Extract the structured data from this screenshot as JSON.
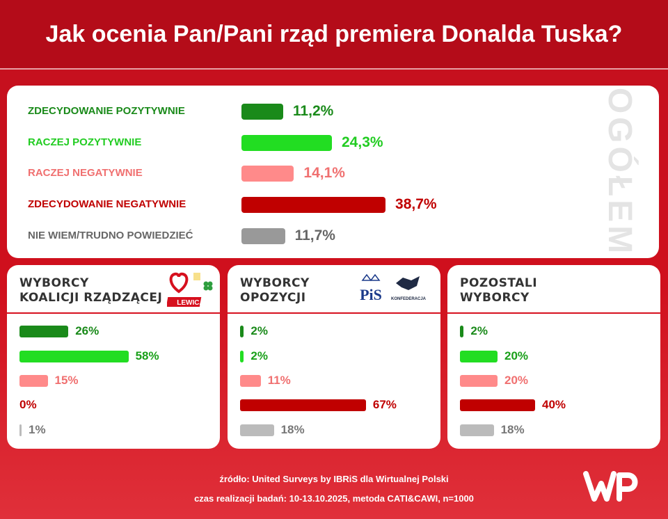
{
  "title": "Jak ocenia Pan/Pani rząd premiera Donalda Tuska?",
  "colors": {
    "title_bg": "#b40c19",
    "dark_green": "#1a8a1a",
    "light_green": "#22dd22",
    "pink": "#ff8a8a",
    "dark_red": "#c00000",
    "grey": "#999999",
    "light_grey": "#bbbbbb"
  },
  "chart_data": [
    {
      "type": "bar",
      "title": "OGÓŁEM",
      "categories": [
        "ZDECYDOWANIE POZYTYWNIE",
        "RACZEJ POZYTYWNIE",
        "RACZEJ NEGATYWNIE",
        "ZDECYDOWANIE NEGATYWNIE",
        "NIE WIEM/TRUDNO POWIEDZIEĆ"
      ],
      "values": [
        11.2,
        24.3,
        14.1,
        38.7,
        11.7
      ],
      "value_labels": [
        "11,2%",
        "24,3%",
        "14,1%",
        "38,7%",
        "11,7%"
      ],
      "orientation": "horizontal"
    },
    {
      "type": "bar",
      "title_lines": [
        "WYBORCY",
        "KOALICJI RZĄDZĄCEJ"
      ],
      "values": [
        26,
        58,
        15,
        0,
        1
      ],
      "value_labels": [
        "26%",
        "58%",
        "15%",
        "0%",
        "1%"
      ],
      "orientation": "horizontal"
    },
    {
      "type": "bar",
      "title_lines": [
        "WYBORCY",
        "OPOZYCJI"
      ],
      "values": [
        2,
        2,
        11,
        67,
        18
      ],
      "value_labels": [
        "2%",
        "2%",
        "11%",
        "67%",
        "18%"
      ],
      "orientation": "horizontal"
    },
    {
      "type": "bar",
      "title_lines": [
        "POZOSTALI",
        "WYBORCY"
      ],
      "values": [
        2,
        20,
        20,
        40,
        18
      ],
      "value_labels": [
        "2%",
        "20%",
        "20%",
        "40%",
        "18%"
      ],
      "orientation": "horizontal"
    }
  ],
  "logos": {
    "lewica": "LEWICA",
    "pis": "PiS",
    "konfederacja": "KONFEDERACJA",
    "wp": "WP"
  },
  "footer": {
    "source": "źródło: United Surveys by IBRiS dla Wirtualnej Polski",
    "method": "czas realizacji badań: 10-13.10.2025, metoda CATI&CAWI, n=1000"
  }
}
